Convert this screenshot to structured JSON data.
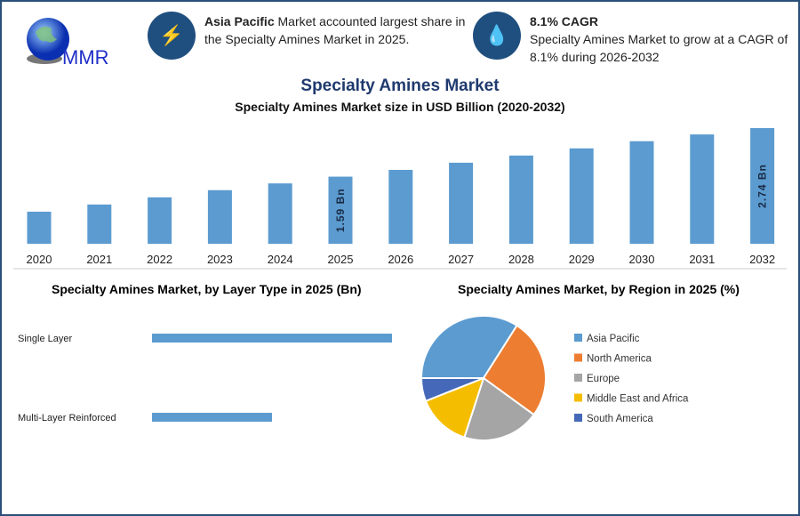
{
  "header": {
    "logo_text": "MMR",
    "info1": {
      "bold": "Asia Pacific",
      "text": " Market accounted largest share in the Specialty Amines Market in 2025.",
      "icon": "lightning-icon"
    },
    "info2": {
      "bold": "8.1% CAGR",
      "text": "Specialty Amines Market to grow at a CAGR of 8.1% during 2026-2032",
      "icon": "flame-drop-icon"
    }
  },
  "main_title": "Specialty Amines Market",
  "colors": {
    "bar": "#5b9bd0",
    "title": "#1f3a6e",
    "frame": "#2a4f7a"
  },
  "chart_data": [
    {
      "type": "bar",
      "title": "Specialty Amines Market size in USD Billion (2020-2032)",
      "categories": [
        "2020",
        "2021",
        "2022",
        "2023",
        "2024",
        "2025",
        "2026",
        "2027",
        "2028",
        "2029",
        "2030",
        "2031",
        "2032"
      ],
      "values": [
        0.76,
        0.93,
        1.1,
        1.27,
        1.43,
        1.59,
        1.75,
        1.92,
        2.09,
        2.26,
        2.43,
        2.59,
        2.74
      ],
      "data_labels": {
        "2025": "1.59 Bn",
        "2032": "2.74 Bn"
      },
      "ylim": [
        0,
        2.74
      ],
      "grid": false
    },
    {
      "type": "bar",
      "orientation": "horizontal",
      "title": "Specialty Amines Market, by Layer Type in 2025 (Bn)",
      "categories": [
        "Single Layer",
        "Multi-Layer Reinforced"
      ],
      "values": [
        1.06,
        0.53
      ],
      "grid": false
    },
    {
      "type": "pie",
      "title": "Specialty Amines Market, by Region in 2025 (%)",
      "categories": [
        "Asia Pacific",
        "North America",
        "Europe",
        "Middle East and Africa",
        "South America"
      ],
      "values": [
        34,
        26,
        20,
        14,
        6
      ],
      "colors": [
        "#5b9bd0",
        "#ed7d31",
        "#a5a5a5",
        "#f5bd00",
        "#4569b8"
      ],
      "legend": "right"
    }
  ]
}
